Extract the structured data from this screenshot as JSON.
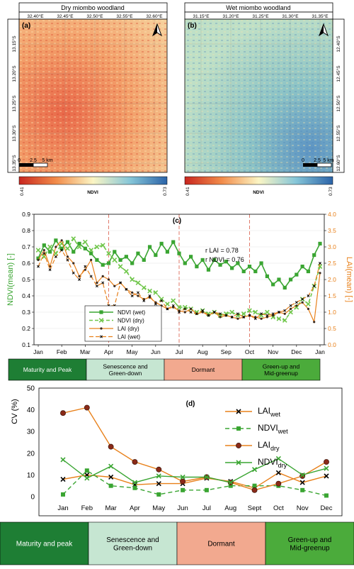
{
  "maps": [
    {
      "title": "Dry miombo woodland",
      "panel": "(a)",
      "lon_ticks": [
        "32.40°E",
        "32.45°E",
        "32.50°E",
        "32.55°E",
        "32.60°E"
      ],
      "lat_ticks": [
        "13.15°S",
        "13.20°S",
        "13.25°S",
        "13.30°S",
        "13.35°S"
      ],
      "scale_labels": [
        "0",
        "2.5",
        "5 km"
      ],
      "colorbar": {
        "min": "0.41",
        "label": "NDVI",
        "max": "0.73"
      }
    },
    {
      "title": "Wet miombo woodland",
      "panel": "(b)",
      "lon_ticks": [
        "31.15°E",
        "31.20°E",
        "31.25°E",
        "31.30°E",
        "31.35°E"
      ],
      "lat_ticks": [
        "12.40°S",
        "12.45°S",
        "12.50°S",
        "12.55°S",
        "12.60°S"
      ],
      "scale_labels": [
        "0",
        "2.5",
        "5 km"
      ],
      "colorbar": {
        "min": "0.41",
        "label": "NDVI",
        "max": "0.73"
      }
    }
  ],
  "colors": {
    "ndvi_wet": "#3aa532",
    "ndvi_dry": "#6fc64a",
    "lai_dry": "#e8801a",
    "lai_wet": "#e8801a",
    "season_line": "#e07a6a",
    "maturity": "#1e7e34",
    "senescence": "#c6e6d2",
    "dormant": "#f2a98f",
    "greenup": "#4bab3b"
  },
  "seasons": {
    "c": [
      "Maturity and Peak",
      "Senescence and\nGreen-down",
      "Dormant",
      "Green-up and\nMid-greenup"
    ],
    "d": [
      "Maturity and peak",
      "Senescence and\nGreen-down",
      "Dormant",
      "Green-up and\nMid-greenup"
    ]
  },
  "chart_data": [
    {
      "type": "line",
      "panel": "(c)",
      "ylabel": "NDVI(mean) [-]",
      "y2label": "LAI(mean) [-]",
      "ylim": [
        0.1,
        0.9
      ],
      "y2lim": [
        0.0,
        4.0
      ],
      "yticks": [
        "0.1",
        "0.2",
        "0.3",
        "0.4",
        "0.5",
        "0.6",
        "0.7",
        "0.8",
        "0.9"
      ],
      "y2ticks": [
        "0.0",
        "0.5",
        "1.0",
        "1.5",
        "2.0",
        "2.5",
        "3.0",
        "3.5",
        "4.0"
      ],
      "x_ticks": [
        "Jan",
        "Feb",
        "Mar",
        "Apr",
        "May",
        "Jun",
        "Jul",
        "Aug",
        "Sep",
        "Oct",
        "Nov",
        "Dec",
        "Jan"
      ],
      "annotations": [
        "r LAI = 0.78",
        "r NDVI = 0.76"
      ],
      "series": [
        {
          "name": "NDVI (wet)",
          "axis": "left",
          "x": [
            0,
            0.25,
            0.5,
            0.75,
            1,
            1.25,
            1.5,
            1.75,
            2,
            2.25,
            2.5,
            2.75,
            3,
            3.25,
            3.5,
            3.75,
            4,
            4.25,
            4.5,
            4.75,
            5,
            5.25,
            5.5,
            5.75,
            6,
            6.25,
            6.5,
            6.75,
            7,
            7.25,
            7.5,
            7.75,
            8,
            8.25,
            8.5,
            8.75,
            9,
            9.25,
            9.5,
            9.75,
            10,
            10.25,
            10.5,
            10.75,
            11,
            11.25,
            11.5,
            11.75,
            12
          ],
          "y": [
            0.63,
            0.71,
            0.67,
            0.74,
            0.69,
            0.73,
            0.67,
            0.72,
            0.69,
            0.66,
            0.62,
            0.59,
            0.6,
            0.67,
            0.62,
            0.64,
            0.6,
            0.66,
            0.62,
            0.7,
            0.65,
            0.72,
            0.67,
            0.73,
            0.66,
            0.6,
            0.64,
            0.58,
            0.62,
            0.56,
            0.62,
            0.59,
            0.61,
            0.57,
            0.6,
            0.55,
            0.58,
            0.55,
            0.6,
            0.52,
            0.47,
            0.5,
            0.45,
            0.5,
            0.53,
            0.58,
            0.55,
            0.65,
            0.72
          ]
        },
        {
          "name": "NDVI (dry)",
          "axis": "left",
          "x": [
            0,
            0.25,
            0.5,
            0.75,
            1,
            1.25,
            1.5,
            1.75,
            2,
            2.25,
            2.5,
            2.75,
            3,
            3.25,
            3.5,
            3.75,
            4,
            4.25,
            4.5,
            4.75,
            5,
            5.25,
            5.5,
            5.75,
            6,
            6.25,
            6.5,
            6.75,
            7,
            7.25,
            7.5,
            7.75,
            8,
            8.25,
            8.5,
            8.75,
            9,
            9.25,
            9.5,
            9.75,
            10,
            10.25,
            10.5,
            10.75,
            11,
            11.25,
            11.5,
            11.75,
            12
          ],
          "y": [
            0.68,
            0.64,
            0.7,
            0.66,
            0.72,
            0.69,
            0.75,
            0.7,
            0.73,
            0.68,
            0.7,
            0.71,
            0.66,
            0.62,
            0.58,
            0.55,
            0.5,
            0.48,
            0.45,
            0.43,
            0.42,
            0.38,
            0.35,
            0.37,
            0.33,
            0.33,
            0.32,
            0.3,
            0.31,
            0.29,
            0.3,
            0.28,
            0.29,
            0.3,
            0.28,
            0.29,
            0.31,
            0.3,
            0.28,
            0.3,
            0.27,
            0.26,
            0.25,
            0.3,
            0.33,
            0.38,
            0.35,
            0.46,
            0.58
          ]
        },
        {
          "name": "LAI (dry)",
          "axis": "right",
          "x": [
            0,
            0.25,
            0.5,
            0.75,
            1,
            1.25,
            1.5,
            1.75,
            2,
            2.25,
            2.5,
            2.75,
            3,
            3.25,
            3.5,
            3.75,
            4,
            4.25,
            4.5,
            4.75,
            5,
            5.25,
            5.5,
            5.75,
            6,
            6.25,
            6.5,
            6.75,
            7,
            7.25,
            7.5,
            7.75,
            8,
            8.25,
            8.5,
            8.75,
            9,
            9.25,
            9.5,
            9.75,
            10,
            10.25,
            10.5,
            10.75,
            11,
            11.25,
            11.5,
            11.75,
            12
          ],
          "y": [
            2.6,
            2.9,
            2.4,
            3.0,
            3.2,
            2.7,
            2.5,
            2.1,
            2.3,
            2.6,
            1.9,
            2.1,
            2.0,
            1.8,
            1.9,
            1.7,
            1.6,
            1.5,
            1.4,
            1.45,
            1.3,
            1.2,
            1.1,
            1.15,
            1.05,
            1.0,
            1.1,
            0.95,
            1.0,
            0.9,
            1.0,
            0.85,
            0.9,
            0.85,
            0.8,
            0.85,
            0.9,
            0.85,
            0.8,
            0.85,
            0.9,
            1.0,
            0.95,
            1.1,
            1.2,
            1.3,
            1.1,
            0.7,
            2.2
          ]
        },
        {
          "name": "LAI (wet)",
          "axis": "right",
          "x": [
            0,
            0.25,
            0.5,
            0.75,
            1,
            1.25,
            1.5,
            1.75,
            2,
            2.25,
            2.5,
            2.75,
            3,
            3.25,
            3.5,
            3.75,
            4,
            4.25,
            4.5,
            4.75,
            5,
            5.25,
            5.5,
            5.75,
            6,
            6.25,
            6.5,
            6.75,
            7,
            7.25,
            7.5,
            7.75,
            8,
            8.25,
            8.5,
            8.75,
            9,
            9.25,
            9.5,
            9.75,
            10,
            10.25,
            10.5,
            10.75,
            11,
            11.25,
            11.5,
            11.75,
            12
          ],
          "y": [
            2.4,
            2.8,
            2.3,
            2.7,
            2.9,
            2.6,
            2.2,
            2.0,
            2.4,
            2.1,
            1.8,
            1.9,
            1.2,
            1.2,
            1.9,
            1.7,
            1.5,
            1.6,
            1.35,
            1.5,
            1.25,
            1.35,
            1.1,
            1.2,
            1.0,
            1.1,
            1.0,
            0.95,
            1.05,
            0.9,
            1.0,
            0.95,
            0.9,
            0.85,
            0.95,
            0.85,
            0.9,
            0.8,
            0.95,
            0.9,
            0.95,
            1.0,
            1.05,
            1.2,
            1.3,
            1.4,
            1.5,
            1.8,
            2.5
          ]
        }
      ]
    },
    {
      "type": "line",
      "panel": "(d)",
      "ylabel": "CV (%)",
      "ylim": [
        0,
        50
      ],
      "yticks": [
        "0",
        "10",
        "20",
        "30",
        "40",
        "50"
      ],
      "categories": [
        "Jan",
        "Feb",
        "Mar",
        "Apr",
        "May",
        "Jun",
        "Jul",
        "Aug",
        "Sept",
        "Oct",
        "Nov",
        "Dec"
      ],
      "series": [
        {
          "name": "LAIwet",
          "values": [
            8,
            10,
            9,
            5.5,
            6,
            6,
            8.5,
            7,
            4,
            11,
            6.5,
            9.5
          ]
        },
        {
          "name": "NDVIwet",
          "values": [
            1,
            12,
            5,
            4,
            1,
            3,
            3,
            5,
            5,
            5,
            3,
            0.5
          ]
        },
        {
          "name": "LAIdry",
          "values": [
            38.5,
            41,
            23,
            16,
            12.5,
            7,
            9,
            6.5,
            3,
            6,
            9.5,
            16
          ]
        },
        {
          "name": "NDVIdry",
          "values": [
            17,
            8.5,
            14,
            6.5,
            9.5,
            9,
            9,
            6.5,
            12.5,
            17.5,
            10,
            13
          ]
        }
      ],
      "legend": [
        {
          "base": "LAI",
          "sub": "wet"
        },
        {
          "base": "NDVI",
          "sub": "wet"
        },
        {
          "base": "LAI",
          "sub": "dry"
        },
        {
          "base": "NDVI",
          "sub": "dry"
        }
      ]
    }
  ]
}
